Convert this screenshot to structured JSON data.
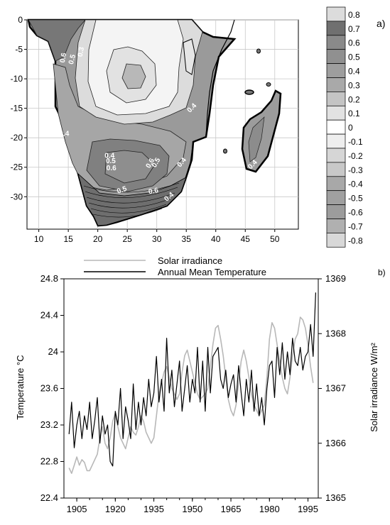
{
  "chart_data": [
    {
      "type": "heatmap",
      "panel_label": "a)",
      "x_ticks": [
        10,
        15,
        20,
        25,
        30,
        35,
        40,
        45,
        50
      ],
      "y_ticks": [
        0,
        -5,
        -10,
        -15,
        -20,
        -25,
        -30
      ],
      "xlim": [
        8,
        54
      ],
      "ylim": [
        -35.5,
        0
      ],
      "grid": true,
      "legend_placement": "right",
      "colorbar_levels": [
        "0.8",
        "0.7",
        "0.6",
        "0.5",
        "0.4",
        "0.3",
        "0.2",
        "0.1",
        "0",
        "-0.1",
        "-0.2",
        "-0.3",
        "-0.4",
        "-0.5",
        "-0.6",
        "-0.7",
        "-0.8"
      ],
      "colorbar_colors": [
        "#dcdcdc",
        "#707070",
        "#8a8a8a",
        "#909090",
        "#9e9e9e",
        "#a9a9a9",
        "#c4c4c4",
        "#e2e2e2",
        "#ffffff",
        "#eeeeee",
        "#d6d6d6",
        "#c8c8c8",
        "#a8a8a8",
        "#a0a0a0",
        "#9c9c9c",
        "#b0b0b0",
        "#d8d8d8"
      ],
      "contour_labels": [
        {
          "text": "0.6",
          "lon": 14.5,
          "lat": -6.5,
          "rot": -80
        },
        {
          "text": "0.3",
          "lon": 17.5,
          "lat": -5.5,
          "rot": -80
        },
        {
          "text": "0.5",
          "lon": 16,
          "lat": -6.8,
          "rot": -75
        },
        {
          "text": "0.4",
          "lon": 12,
          "lat": -13.5,
          "rot": -70
        },
        {
          "text": "0.4",
          "lon": 14.3,
          "lat": -19.7,
          "rot": 0
        },
        {
          "text": "0.4",
          "lon": 14.3,
          "lat": -26.8,
          "rot": -40
        },
        {
          "text": "0.4",
          "lon": 22,
          "lat": -23.4,
          "rot": 0
        },
        {
          "text": "0.5",
          "lon": 22.2,
          "lat": -24.3,
          "rot": 0
        },
        {
          "text": "0.6",
          "lon": 22.3,
          "lat": -25.5,
          "rot": 0
        },
        {
          "text": "0.6",
          "lon": 29.2,
          "lat": -24.5,
          "rot": -60
        },
        {
          "text": "0.5",
          "lon": 30.2,
          "lat": -24.4,
          "rot": -60
        },
        {
          "text": "0.4",
          "lon": 36.2,
          "lat": -15.2,
          "rot": -45
        },
        {
          "text": "0.4",
          "lon": 34.5,
          "lat": -24.4,
          "rot": -50
        },
        {
          "text": "0.4",
          "lon": 46.5,
          "lat": -24.8,
          "rot": -45
        },
        {
          "text": "0.5",
          "lon": 24.2,
          "lat": -29.2,
          "rot": -20
        },
        {
          "text": "0.6",
          "lon": 29.5,
          "lat": -29.4,
          "rot": -10
        },
        {
          "text": "0.4",
          "lon": 32.3,
          "lat": -30.3,
          "rot": -40
        }
      ]
    },
    {
      "type": "line",
      "panel_label": "b)",
      "legend_placement": "top-center",
      "ylabel_left": "Temperature °C",
      "ylabel_right": "Solar irradiance W/m²",
      "xlim": [
        1900,
        1999
      ],
      "ylim_left": [
        22.4,
        24.8
      ],
      "ylim_right": [
        1365,
        1369
      ],
      "x_ticks": [
        1905,
        1920,
        1935,
        1950,
        1965,
        1980,
        1995
      ],
      "y_ticks_left": [
        "22.4",
        "22.8",
        "23.2",
        "23.6",
        "24",
        "24.4",
        "24.8"
      ],
      "y_ticks_right": [
        "1365",
        "1366",
        "1367",
        "1368",
        "1369"
      ],
      "grid": false,
      "series": [
        {
          "name": "Solar irradiance",
          "axis": "right",
          "color": "#b8b8b8",
          "x": [
            1902,
            1903,
            1904,
            1905,
            1906,
            1907,
            1908,
            1909,
            1910,
            1911,
            1912,
            1913,
            1914,
            1915,
            1916,
            1917,
            1918,
            1919,
            1920,
            1921,
            1922,
            1923,
            1924,
            1925,
            1926,
            1927,
            1928,
            1929,
            1930,
            1931,
            1932,
            1933,
            1934,
            1935,
            1936,
            1937,
            1938,
            1939,
            1940,
            1941,
            1942,
            1943,
            1944,
            1945,
            1946,
            1947,
            1948,
            1949,
            1950,
            1951,
            1952,
            1953,
            1954,
            1955,
            1956,
            1957,
            1958,
            1959,
            1960,
            1961,
            1962,
            1963,
            1964,
            1965,
            1966,
            1967,
            1968,
            1969,
            1970,
            1971,
            1972,
            1973,
            1974,
            1975,
            1976,
            1977,
            1978,
            1979,
            1980,
            1981,
            1982,
            1983,
            1984,
            1985,
            1986,
            1987,
            1988,
            1989,
            1990,
            1991,
            1992,
            1993,
            1994,
            1995,
            1996,
            1997
          ],
          "values": [
            1365.55,
            1365.45,
            1365.6,
            1365.75,
            1365.6,
            1365.7,
            1365.65,
            1365.5,
            1365.5,
            1365.6,
            1365.7,
            1365.8,
            1366.1,
            1366.3,
            1366.0,
            1365.9,
            1366.1,
            1366.4,
            1366.55,
            1366.3,
            1366.1,
            1366.0,
            1365.9,
            1366.1,
            1366.3,
            1366.2,
            1366.15,
            1366.3,
            1366.5,
            1366.4,
            1366.2,
            1366.1,
            1366.0,
            1366.1,
            1366.5,
            1366.9,
            1367.1,
            1367.3,
            1367.4,
            1367.2,
            1367.0,
            1366.9,
            1366.8,
            1366.9,
            1367.3,
            1367.6,
            1367.7,
            1367.5,
            1367.3,
            1367.1,
            1366.9,
            1366.8,
            1366.85,
            1366.9,
            1367.0,
            1367.4,
            1367.8,
            1368.1,
            1368.15,
            1367.9,
            1367.6,
            1367.2,
            1366.8,
            1366.6,
            1366.5,
            1366.7,
            1367.1,
            1367.5,
            1367.7,
            1367.5,
            1367.2,
            1366.9,
            1366.7,
            1366.6,
            1366.5,
            1366.6,
            1366.7,
            1367.2,
            1367.9,
            1368.2,
            1368.1,
            1367.8,
            1367.5,
            1367.2,
            1367.0,
            1366.9,
            1367.2,
            1367.6,
            1367.9,
            1368.0,
            1368.3,
            1368.25,
            1368.1,
            1367.8,
            1367.4,
            1367.1
          ]
        },
        {
          "name": "Annual Mean Temperature",
          "axis": "left",
          "color": "#000000",
          "x": [
            1902,
            1903,
            1904,
            1905,
            1906,
            1907,
            1908,
            1909,
            1910,
            1911,
            1912,
            1913,
            1914,
            1915,
            1916,
            1917,
            1918,
            1919,
            1920,
            1921,
            1922,
            1923,
            1924,
            1925,
            1926,
            1927,
            1928,
            1929,
            1930,
            1931,
            1932,
            1933,
            1934,
            1935,
            1936,
            1937,
            1938,
            1939,
            1940,
            1941,
            1942,
            1943,
            1944,
            1945,
            1946,
            1947,
            1948,
            1949,
            1950,
            1951,
            1952,
            1953,
            1954,
            1955,
            1956,
            1957,
            1958,
            1959,
            1960,
            1961,
            1962,
            1963,
            1964,
            1965,
            1966,
            1967,
            1968,
            1969,
            1970,
            1971,
            1972,
            1973,
            1974,
            1975,
            1976,
            1977,
            1978,
            1979,
            1980,
            1981,
            1982,
            1983,
            1984,
            1985,
            1986,
            1987,
            1988,
            1989,
            1990,
            1991,
            1992,
            1993,
            1994,
            1995,
            1996,
            1997,
            1998
          ],
          "values": [
            23.1,
            23.45,
            22.95,
            23.2,
            23.35,
            23.05,
            23.3,
            23.15,
            23.45,
            23.05,
            23.25,
            23.5,
            23.0,
            23.3,
            23.1,
            23.2,
            22.8,
            22.75,
            23.35,
            23.2,
            23.6,
            23.05,
            23.4,
            23.25,
            23.05,
            23.65,
            23.15,
            23.45,
            23.2,
            23.5,
            23.3,
            23.7,
            23.4,
            23.55,
            23.95,
            23.45,
            23.7,
            23.35,
            24.15,
            23.55,
            23.8,
            23.4,
            23.65,
            23.9,
            23.35,
            23.6,
            23.85,
            23.45,
            23.7,
            23.55,
            24.05,
            23.45,
            23.9,
            23.35,
            24.05,
            23.55,
            23.95,
            24.0,
            24.05,
            23.7,
            23.6,
            23.8,
            23.5,
            23.65,
            23.75,
            23.45,
            23.85,
            23.55,
            23.3,
            23.7,
            23.45,
            23.8,
            23.35,
            23.65,
            23.3,
            23.5,
            23.2,
            23.6,
            23.85,
            23.9,
            23.5,
            24.05,
            23.75,
            24.1,
            23.7,
            24.0,
            23.75,
            24.15,
            23.9,
            23.85,
            24.05,
            23.8,
            23.95,
            24.0,
            24.3,
            23.95,
            24.65
          ]
        }
      ]
    }
  ]
}
